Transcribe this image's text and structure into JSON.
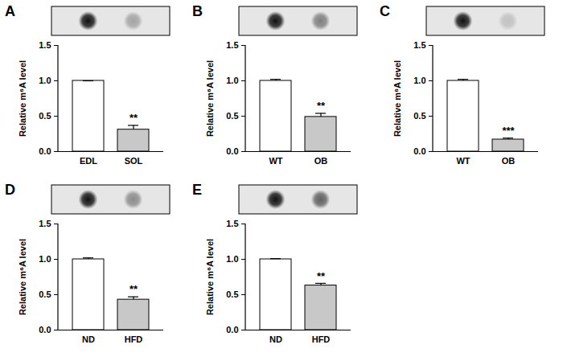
{
  "chart_data": [
    {
      "type": "bar",
      "title": "A",
      "categories": [
        "EDL",
        "SOL"
      ],
      "values": [
        1.0,
        0.31
      ],
      "errors": [
        0.0,
        0.06
      ],
      "colors": [
        "#ffffff",
        "#c8c8c8"
      ],
      "annotations": [
        {
          "category": "SOL",
          "text": "**"
        }
      ],
      "ylabel": "Relative m⁶A level",
      "ylim": [
        0,
        1.5
      ],
      "yticks": [
        {
          "value": 0,
          "label": "0.0"
        },
        {
          "value": 0.5,
          "label": "0.5"
        },
        {
          "value": 1,
          "label": "1.0"
        },
        {
          "value": 1.5,
          "label": "1.5"
        }
      ]
    },
    {
      "type": "bar",
      "title": "B",
      "categories": [
        "WT",
        "OB"
      ],
      "values": [
        1.0,
        0.49
      ],
      "errors": [
        0.02,
        0.05
      ],
      "colors": [
        "#ffffff",
        "#c8c8c8"
      ],
      "annotations": [
        {
          "category": "OB",
          "text": "**"
        }
      ],
      "ylabel": "Relative m⁶A level",
      "ylim": [
        0,
        1.5
      ],
      "yticks": [
        {
          "value": 0,
          "label": "0.0"
        },
        {
          "value": 0.5,
          "label": "0.5"
        },
        {
          "value": 1,
          "label": "1.0"
        },
        {
          "value": 1.5,
          "label": "1.5"
        }
      ]
    },
    {
      "type": "bar",
      "title": "C",
      "categories": [
        "WT",
        "OB"
      ],
      "values": [
        1.0,
        0.17
      ],
      "errors": [
        0.02,
        0.02
      ],
      "colors": [
        "#ffffff",
        "#c8c8c8"
      ],
      "annotations": [
        {
          "category": "OB",
          "text": "***"
        }
      ],
      "ylabel": "Relative m⁶A level",
      "ylim": [
        0,
        1.5
      ],
      "yticks": [
        {
          "value": 0,
          "label": "0.0"
        },
        {
          "value": 0.5,
          "label": "0.5"
        },
        {
          "value": 1,
          "label": "1.0"
        },
        {
          "value": 1.5,
          "label": "1.5"
        }
      ]
    },
    {
      "type": "bar",
      "title": "D",
      "categories": [
        "ND",
        "HFD"
      ],
      "values": [
        1.0,
        0.43
      ],
      "errors": [
        0.02,
        0.04
      ],
      "colors": [
        "#ffffff",
        "#c8c8c8"
      ],
      "annotations": [
        {
          "category": "HFD",
          "text": "**"
        }
      ],
      "ylabel": "Relative m⁶A level",
      "ylim": [
        0,
        1.5
      ],
      "yticks": [
        {
          "value": 0,
          "label": "0.0"
        },
        {
          "value": 0.5,
          "label": "0.5"
        },
        {
          "value": 1,
          "label": "1.0"
        },
        {
          "value": 1.5,
          "label": "1.5"
        }
      ]
    },
    {
      "type": "bar",
      "title": "E",
      "categories": [
        "ND",
        "HFD"
      ],
      "values": [
        1.0,
        0.63
      ],
      "errors": [
        0.01,
        0.03
      ],
      "colors": [
        "#ffffff",
        "#c8c8c8"
      ],
      "annotations": [
        {
          "category": "HFD",
          "text": "**"
        }
      ],
      "ylabel": "Relative m⁶A level",
      "ylim": [
        0,
        1.5
      ],
      "yticks": [
        {
          "value": 0,
          "label": "0.0"
        },
        {
          "value": 0.5,
          "label": "0.5"
        },
        {
          "value": 1,
          "label": "1.0"
        },
        {
          "value": 1.5,
          "label": "1.5"
        }
      ]
    }
  ]
}
